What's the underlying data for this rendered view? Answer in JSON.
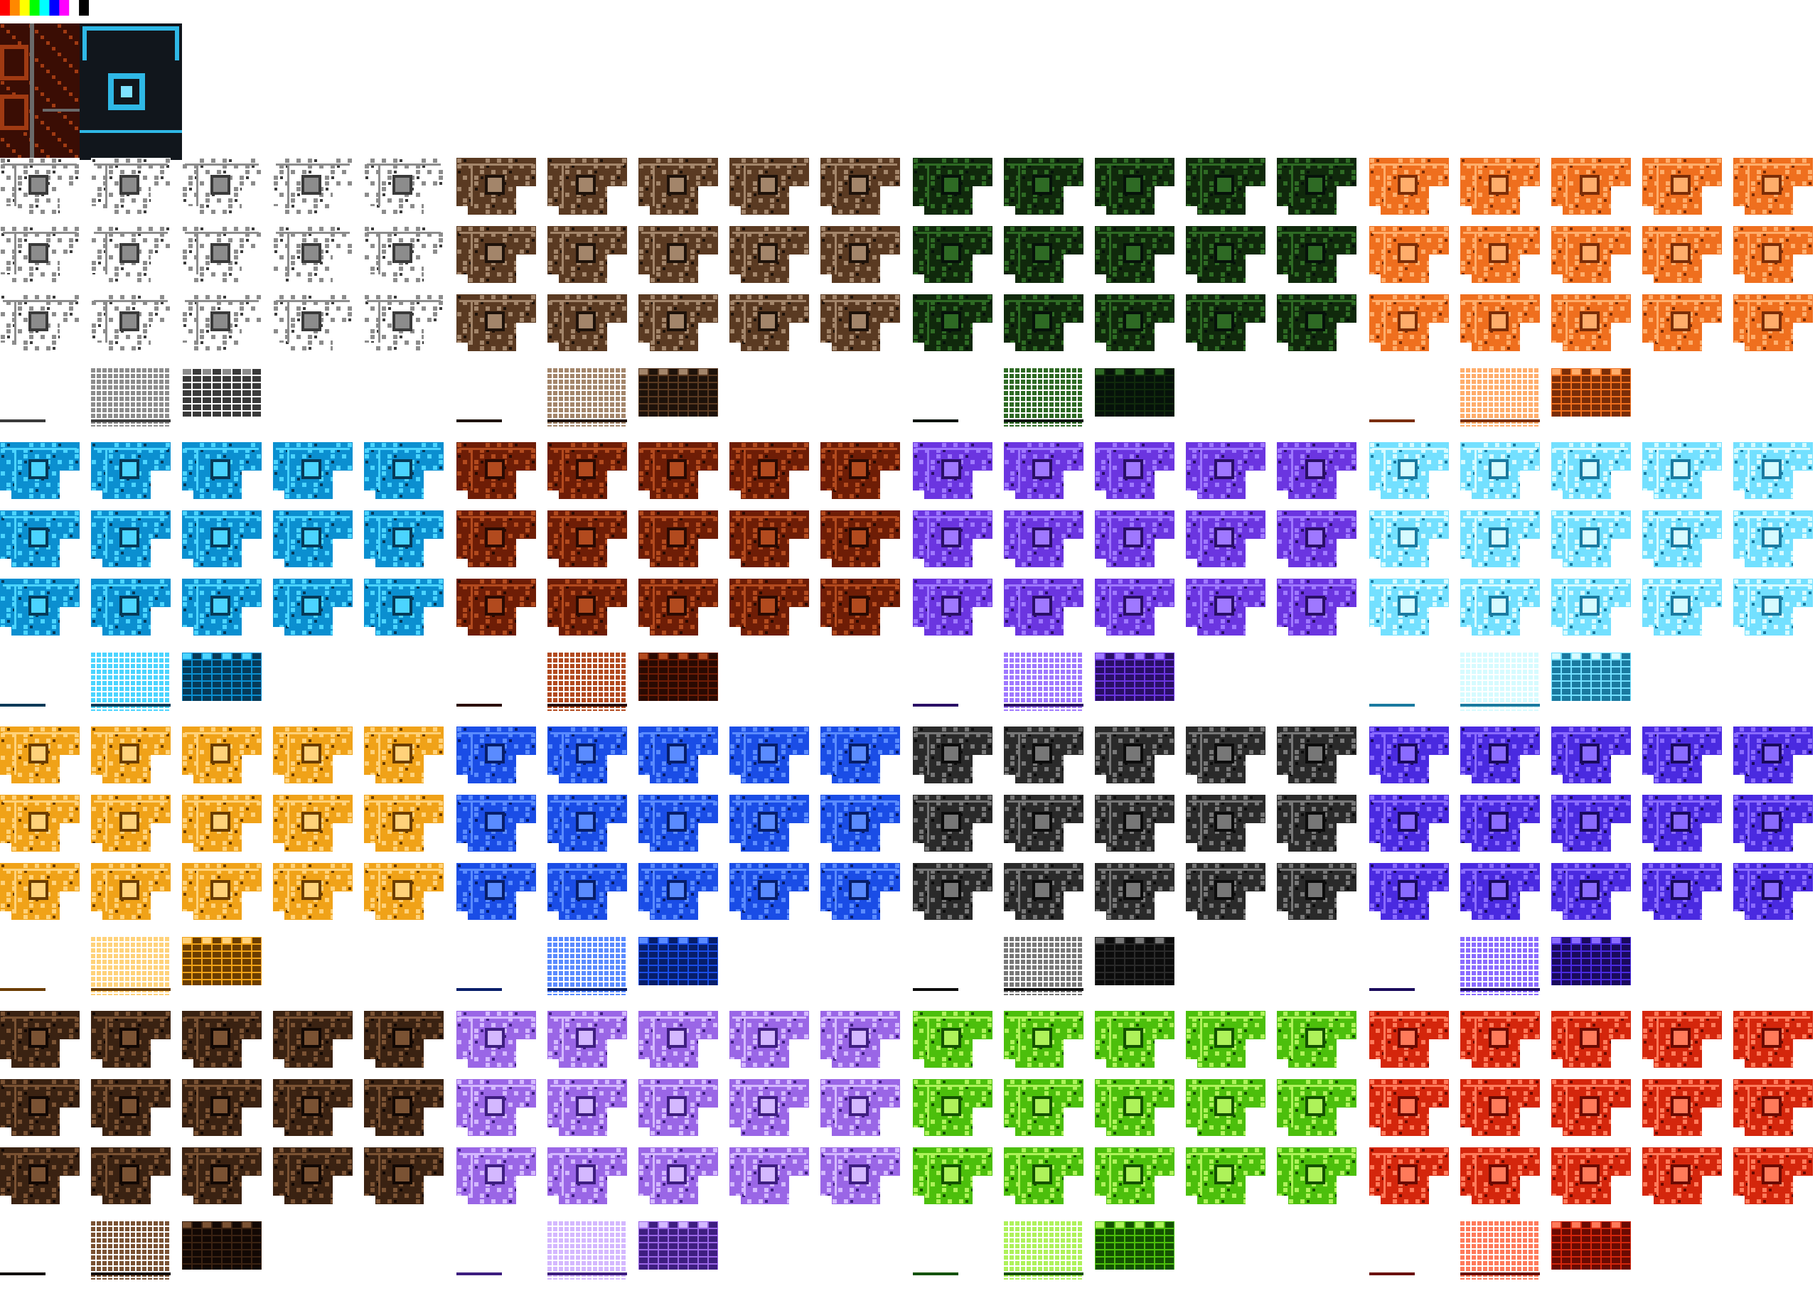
{
  "preview": {
    "palette_colors": [
      "#ff0000",
      "#ff8800",
      "#ffff00",
      "#00ff00",
      "#00ffff",
      "#0000ff",
      "#ff00ff",
      "#ffffff",
      "#000000"
    ],
    "left_panel": {
      "bg": "#3a0d04",
      "fg": "#a03a12",
      "line": "#6a6a6a"
    },
    "right_panel": {
      "bg": "#11161c",
      "fg": "#2fb8e6",
      "accent": "#7fe2ff"
    }
  },
  "themes": [
    {
      "name": "gray",
      "bg": "#ffffff",
      "fg": "#8c8c8c",
      "dark": "#3a3a3a"
    },
    {
      "name": "brown",
      "bg": "#5a3a22",
      "fg": "#a3856a",
      "dark": "#1e120a"
    },
    {
      "name": "forest",
      "bg": "#10290c",
      "fg": "#2e6a24",
      "dark": "#06120a"
    },
    {
      "name": "orange",
      "bg": "#ef6f1e",
      "fg": "#ffad6b",
      "dark": "#7a2d08"
    },
    {
      "name": "cyan",
      "bg": "#0b8fd0",
      "fg": "#4bd4ff",
      "dark": "#063a58"
    },
    {
      "name": "rust",
      "bg": "#6e1d06",
      "fg": "#b24a1e",
      "dark": "#2a0a02"
    },
    {
      "name": "violet",
      "bg": "#6b35e0",
      "fg": "#9f78ff",
      "dark": "#2a0f66"
    },
    {
      "name": "ice",
      "bg": "#73e0ff",
      "fg": "#d6fbff",
      "dark": "#1a7aa0"
    },
    {
      "name": "amber",
      "bg": "#f0a218",
      "fg": "#ffd27a",
      "dark": "#6b3d00"
    },
    {
      "name": "blue",
      "bg": "#1a4de6",
      "fg": "#5a8bff",
      "dark": "#071e6a"
    },
    {
      "name": "charcoal",
      "bg": "#2a2a2a",
      "fg": "#777777",
      "dark": "#0c0c0c"
    },
    {
      "name": "indigo",
      "bg": "#4a2ae0",
      "fg": "#8a6bff",
      "dark": "#1a0a5c"
    },
    {
      "name": "mocha",
      "bg": "#3a2212",
      "fg": "#7a5233",
      "dark": "#120804"
    },
    {
      "name": "lavender",
      "bg": "#9a66e6",
      "fg": "#d4b8ff",
      "dark": "#3e1e80"
    },
    {
      "name": "lime",
      "bg": "#4cbf0c",
      "fg": "#aef25a",
      "dark": "#145202"
    },
    {
      "name": "red",
      "bg": "#d4260c",
      "fg": "#ff7a5a",
      "dark": "#6a0a02"
    }
  ]
}
